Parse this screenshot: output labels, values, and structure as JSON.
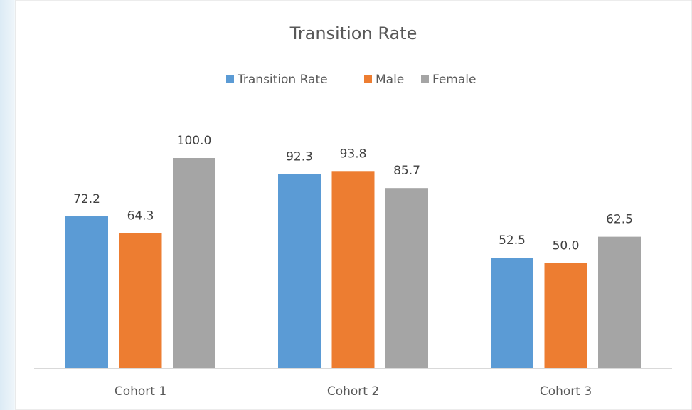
{
  "chart_data": {
    "type": "bar",
    "title": "Transition Rate",
    "categories": [
      "Cohort 1",
      "Cohort 2",
      "Cohort 3"
    ],
    "series": [
      {
        "name": "Transition Rate",
        "color": "#5b9bd5",
        "values": [
          72.2,
          92.3,
          52.5
        ],
        "value_labels": [
          "72.2",
          "92.3",
          "52.5"
        ]
      },
      {
        "name": "Male",
        "color": "#ed7d31",
        "values": [
          64.3,
          93.8,
          50.0
        ],
        "value_labels": [
          "64.3",
          "93.8",
          "50.0"
        ]
      },
      {
        "name": "Female",
        "color": "#a5a5a5",
        "values": [
          100.0,
          85.7,
          62.5
        ],
        "value_labels": [
          "100.0",
          "85.7",
          "62.5"
        ]
      }
    ],
    "legend": "top"
  }
}
